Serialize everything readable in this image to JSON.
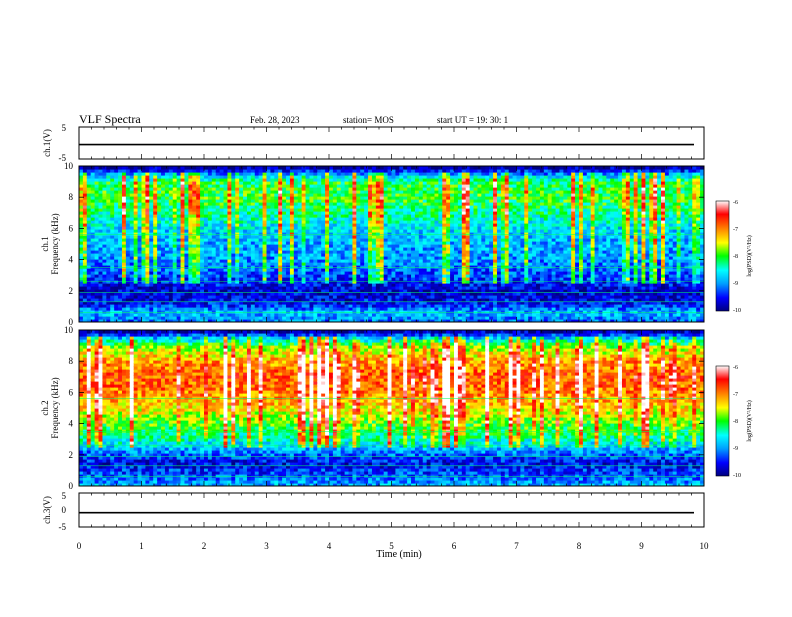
{
  "header": {
    "title": "VLF Spectra",
    "date": "Feb. 28, 2023",
    "station": "station= MOS",
    "start": "start  UT =   19: 30: 1"
  },
  "chart_data": [
    {
      "type": "line",
      "title": "",
      "ylabel": "ch.1(V)",
      "ylim": [
        -5,
        5
      ],
      "y_ticks": [
        "5",
        "-5"
      ],
      "x": [
        0,
        10
      ],
      "series": [
        {
          "values": [
            -0.5,
            -0.5
          ]
        }
      ]
    },
    {
      "type": "heatmap",
      "ylabel_channel": "ch.1",
      "ylabel": "Frequency (kHz)",
      "ylim": [
        0,
        10
      ],
      "y_ticks": [
        "0",
        "2",
        "4",
        "6",
        "8",
        "10"
      ],
      "xlim": [
        0,
        10
      ],
      "colorbar": {
        "label": "log(PSD)(V²/Hz)",
        "ticks": [
          "-6",
          "-7",
          "-8",
          "-9",
          "-10"
        ],
        "range": [
          -10,
          -6
        ],
        "colors": [
          "#00007f",
          "#0000ff",
          "#00a0ff",
          "#00ffff",
          "#00ff00",
          "#ffff00",
          "#ff8000",
          "#ff0000",
          "#ffffff"
        ]
      },
      "band_profile": [
        {
          "f": 0.0,
          "v": -9.2
        },
        {
          "f": 0.6,
          "v": -8.8
        },
        {
          "f": 1.2,
          "v": -9.5
        },
        {
          "f": 2.0,
          "v": -9.7
        },
        {
          "f": 3.0,
          "v": -9.3
        },
        {
          "f": 4.0,
          "v": -9.0
        },
        {
          "f": 5.0,
          "v": -8.9
        },
        {
          "f": 6.0,
          "v": -8.7
        },
        {
          "f": 7.0,
          "v": -8.3
        },
        {
          "f": 8.0,
          "v": -8.0
        },
        {
          "f": 9.0,
          "v": -8.1
        },
        {
          "f": 9.5,
          "v": -9.0
        },
        {
          "f": 10.0,
          "v": -10.0
        }
      ]
    },
    {
      "type": "heatmap",
      "ylabel_channel": "ch.2",
      "ylabel": "Frequency (kHz)",
      "ylim": [
        0,
        10
      ],
      "y_ticks": [
        "0",
        "2",
        "4",
        "6",
        "8",
        "10"
      ],
      "xlim": [
        0,
        10
      ],
      "colorbar": {
        "label": "log(PSD)(V²/Hz)",
        "ticks": [
          "-6",
          "-7",
          "-8",
          "-9",
          "-10"
        ],
        "range": [
          -10,
          -6
        ],
        "colors": [
          "#00007f",
          "#0000ff",
          "#00a0ff",
          "#00ffff",
          "#00ff00",
          "#ffff00",
          "#ff8000",
          "#ff0000",
          "#ffffff"
        ]
      },
      "band_profile": [
        {
          "f": 0.0,
          "v": -8.8
        },
        {
          "f": 0.8,
          "v": -9.3
        },
        {
          "f": 1.5,
          "v": -9.6
        },
        {
          "f": 2.0,
          "v": -9.2
        },
        {
          "f": 3.0,
          "v": -8.4
        },
        {
          "f": 4.0,
          "v": -7.9
        },
        {
          "f": 5.0,
          "v": -7.4
        },
        {
          "f": 6.0,
          "v": -7.0
        },
        {
          "f": 7.0,
          "v": -6.8
        },
        {
          "f": 8.0,
          "v": -7.1
        },
        {
          "f": 9.0,
          "v": -7.8
        },
        {
          "f": 9.6,
          "v": -9.0
        },
        {
          "f": 10.0,
          "v": -10.0
        }
      ]
    },
    {
      "type": "line",
      "title": "",
      "ylabel": "ch.3(V)",
      "ylim": [
        -5,
        5
      ],
      "y_ticks": [
        "5",
        "0",
        "-5"
      ],
      "x": [
        0,
        10
      ],
      "series": [
        {
          "values": [
            -0.8,
            -0.8
          ]
        }
      ]
    }
  ],
  "x_axis": {
    "label": "Time (min)",
    "ticks": [
      "0",
      "1",
      "2",
      "3",
      "4",
      "5",
      "6",
      "7",
      "8",
      "9",
      "10"
    ],
    "range": [
      0,
      10
    ]
  }
}
